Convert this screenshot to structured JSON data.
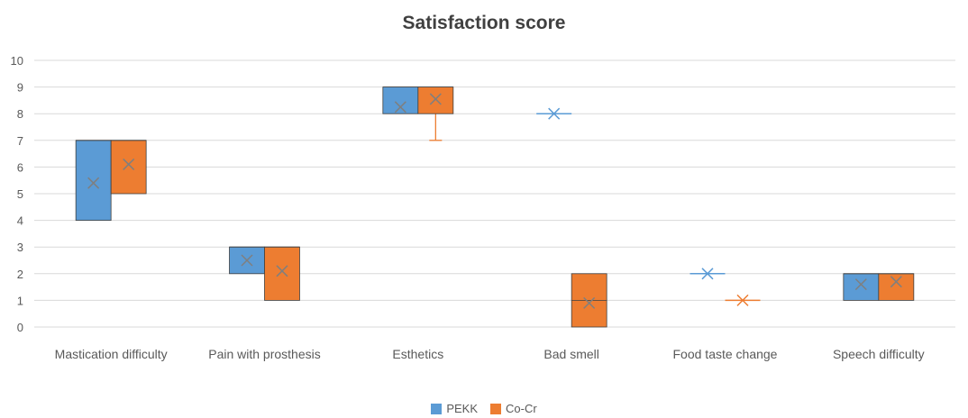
{
  "chart_data": {
    "type": "box",
    "title": "Satisfaction score",
    "xlabel": "",
    "ylabel": "",
    "ylim": [
      0,
      10
    ],
    "yticks": [
      0,
      1,
      2,
      3,
      4,
      5,
      6,
      7,
      8,
      9,
      10
    ],
    "grid": true,
    "legend_position": "bottom",
    "categories": [
      "Mastication difficulty",
      "Pain with prosthesis",
      "Esthetics",
      "Bad smell",
      "Food taste change",
      "Speech difficulty"
    ],
    "series": [
      {
        "name": "PEKK",
        "color": "#5B9BD5",
        "boxes": [
          {
            "min": 4,
            "q1": 4,
            "median": 7,
            "q3": 7,
            "max": 7,
            "mean": 5.4
          },
          {
            "min": 2,
            "q1": 2,
            "median": 3,
            "q3": 3,
            "max": 3,
            "mean": 2.5
          },
          {
            "min": 8,
            "q1": 8,
            "median": 9,
            "q3": 9,
            "max": 9,
            "mean": 8.25
          },
          {
            "min": 8,
            "q1": 8,
            "median": 8,
            "q3": 8,
            "max": 8,
            "mean": 8
          },
          {
            "min": 2,
            "q1": 2,
            "median": 2,
            "q3": 2,
            "max": 2,
            "mean": 2
          },
          {
            "min": 1,
            "q1": 1,
            "median": 2,
            "q3": 2,
            "max": 2,
            "mean": 1.6
          }
        ]
      },
      {
        "name": "Co-Cr",
        "color": "#ED7D31",
        "boxes": [
          {
            "min": 5,
            "q1": 5,
            "median": 7,
            "q3": 7,
            "max": 7,
            "mean": 6.1
          },
          {
            "min": 1,
            "q1": 1,
            "median": 3,
            "q3": 3,
            "max": 3,
            "mean": 2.1
          },
          {
            "min": 7,
            "q1": 8,
            "median": 9,
            "q3": 9,
            "max": 9,
            "mean": 8.55
          },
          {
            "min": 0,
            "q1": 0,
            "median": 1,
            "q3": 2,
            "max": 2,
            "mean": 0.9
          },
          {
            "min": 1,
            "q1": 1,
            "median": 1,
            "q3": 1,
            "max": 1,
            "mean": 1
          },
          {
            "min": 1,
            "q1": 1,
            "median": 2,
            "q3": 2,
            "max": 2,
            "mean": 1.7
          }
        ]
      }
    ]
  }
}
